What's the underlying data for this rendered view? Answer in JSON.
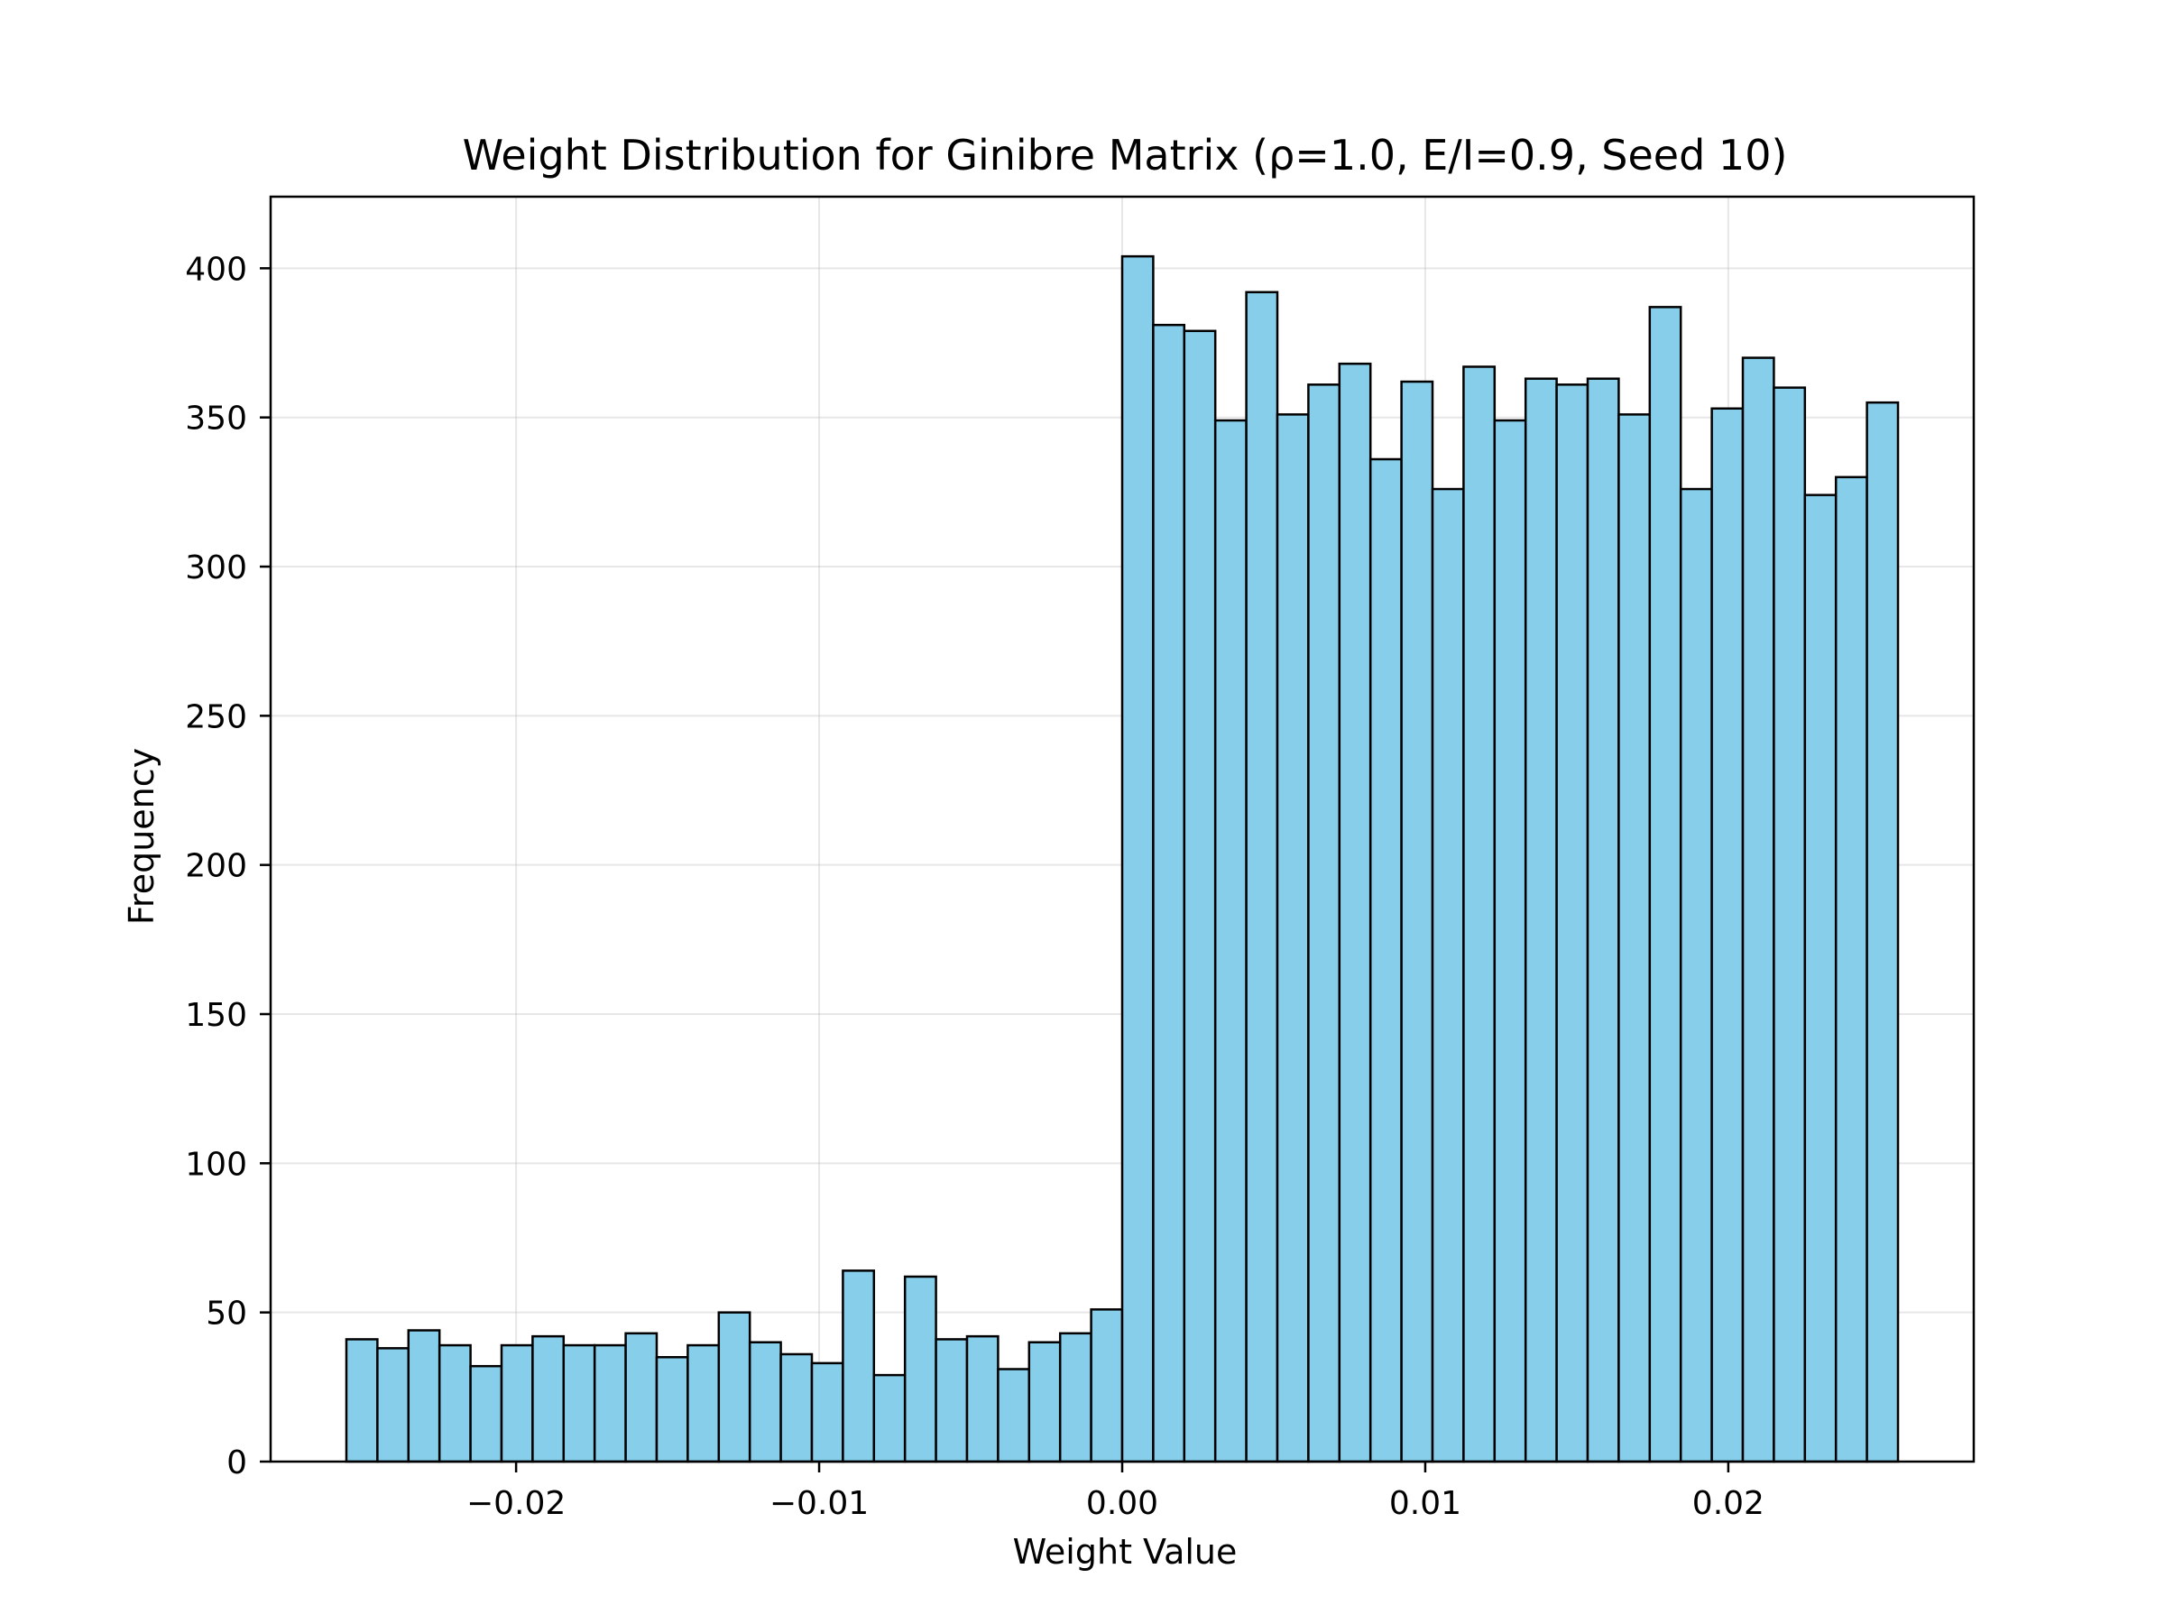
{
  "chart_data": {
    "type": "bar",
    "title": "Weight Distribution for Ginibre Matrix (ρ=1.0, E/I=0.9, Seed 10)",
    "xlabel": "Weight Value",
    "ylabel": "Frequency",
    "xlim": [
      -0.0281,
      0.0281
    ],
    "ylim": [
      0,
      424
    ],
    "x_ticks": [
      -0.02,
      -0.01,
      0.0,
      0.01,
      0.02
    ],
    "x_tick_labels": [
      "−0.02",
      "−0.01",
      "0.00",
      "0.01",
      "0.02"
    ],
    "y_ticks": [
      0,
      50,
      100,
      150,
      200,
      250,
      300,
      350,
      400
    ],
    "y_tick_labels": [
      "0",
      "50",
      "100",
      "150",
      "200",
      "250",
      "300",
      "350",
      "400"
    ],
    "grid": true,
    "bin_start": -0.0256,
    "bin_width": 0.001024,
    "values": [
      41,
      38,
      44,
      39,
      32,
      39,
      42,
      39,
      39,
      43,
      35,
      39,
      50,
      40,
      36,
      33,
      64,
      29,
      62,
      41,
      42,
      31,
      40,
      43,
      51,
      404,
      381,
      379,
      349,
      392,
      351,
      361,
      368,
      336,
      362,
      326,
      367,
      349,
      363,
      361,
      363,
      351,
      387,
      326,
      353,
      370,
      360,
      324,
      330,
      355
    ],
    "bar_color": "#87CEEB",
    "edge_color": "#000000"
  }
}
